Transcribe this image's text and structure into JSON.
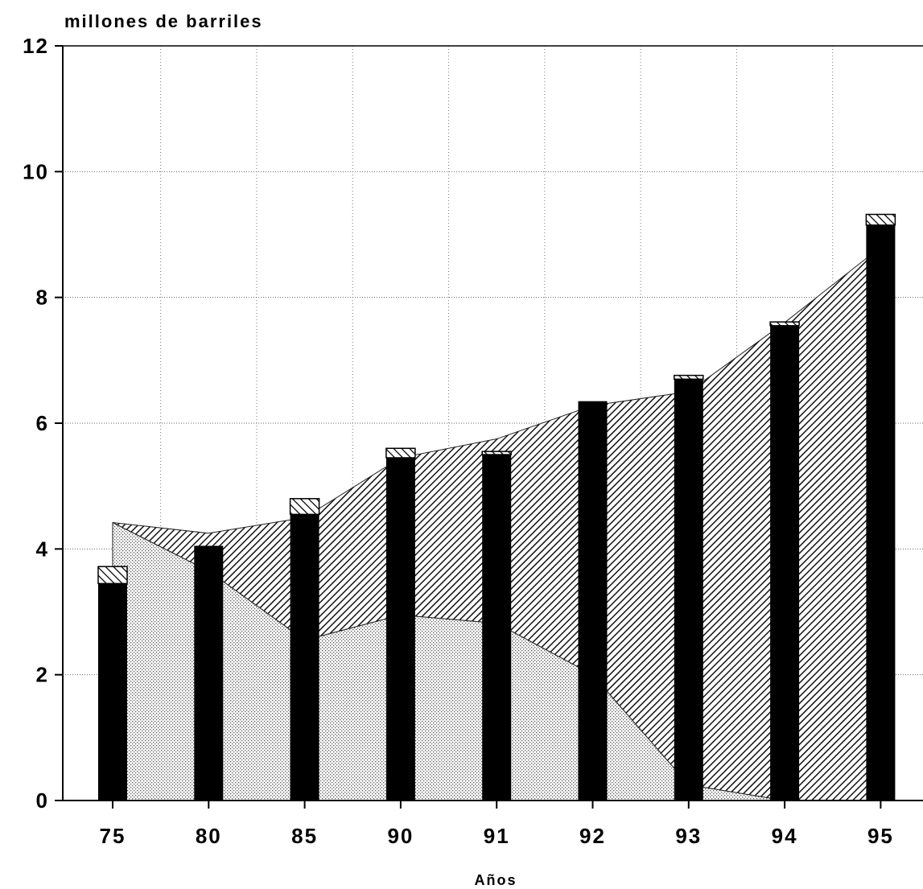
{
  "chart_data": {
    "type": "bar",
    "ylabel": "millones de barriles",
    "xlabel": "Años",
    "categories": [
      "75",
      "80",
      "85",
      "90",
      "91",
      "92",
      "93",
      "94",
      "95"
    ],
    "ylim": [
      0,
      12
    ],
    "yticks": [
      0,
      2,
      4,
      6,
      8,
      10,
      12
    ],
    "grid": true,
    "bar_series": [
      {
        "fill": "#000000",
        "values": [
          3.45,
          4.05,
          4.55,
          5.45,
          5.5,
          6.35,
          6.7,
          7.55,
          9.15
        ]
      },
      {
        "fill": "hatch",
        "values": [
          0.27,
          0.0,
          0.25,
          0.15,
          0.05,
          0.0,
          0.06,
          0.06,
          0.17
        ]
      }
    ],
    "area_series": [
      {
        "fill": "dotted",
        "values": [
          4.42,
          3.65,
          2.55,
          2.95,
          2.82,
          2.0,
          0.25,
          0.0,
          0.0
        ]
      },
      {
        "fill": "hatch",
        "values": [
          0.0,
          0.6,
          1.95,
          2.5,
          2.93,
          4.28,
          6.25,
          7.6,
          8.8
        ]
      }
    ]
  }
}
